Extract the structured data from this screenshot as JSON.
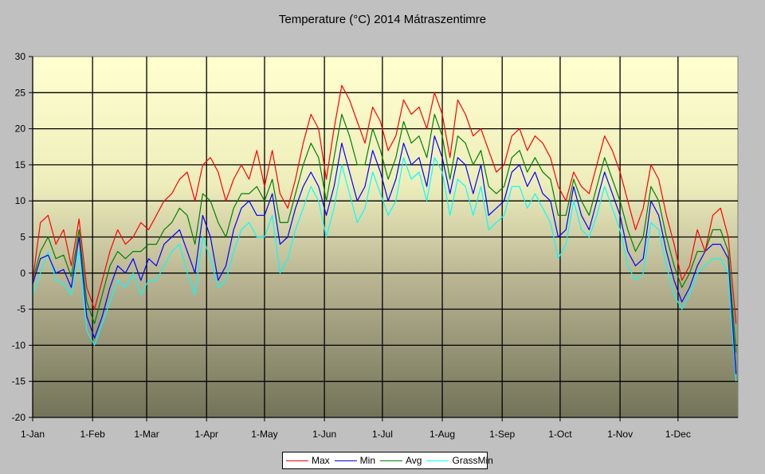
{
  "chart_data": {
    "type": "line",
    "title": "Temperature (°C) 2014 Mátraszentimre",
    "xlabel": "",
    "ylabel": "",
    "ylim": [
      -20,
      30
    ],
    "yticks": [
      30,
      25,
      20,
      15,
      10,
      5,
      0,
      -5,
      -10,
      -15,
      -20
    ],
    "xlim_days": [
      1,
      365
    ],
    "xtick_labels": [
      "1-Jan",
      "1-Feb",
      "1-Mar",
      "1-Apr",
      "1-May",
      "1-Jun",
      "1-Jul",
      "1-Aug",
      "1-Sep",
      "1-Oct",
      "1-Nov",
      "1-Dec"
    ],
    "xtick_days": [
      1,
      32,
      60,
      91,
      121,
      152,
      182,
      213,
      244,
      274,
      305,
      335
    ],
    "grid": true,
    "legend_position": "bottom",
    "x_day_of_year": [
      1,
      5,
      9,
      13,
      17,
      21,
      25,
      29,
      33,
      37,
      41,
      45,
      49,
      53,
      57,
      61,
      65,
      69,
      73,
      77,
      81,
      85,
      89,
      93,
      97,
      101,
      105,
      109,
      113,
      117,
      121,
      125,
      129,
      133,
      137,
      141,
      145,
      149,
      153,
      157,
      161,
      165,
      169,
      173,
      177,
      181,
      185,
      189,
      193,
      197,
      201,
      205,
      209,
      213,
      217,
      221,
      225,
      229,
      233,
      237,
      241,
      245,
      249,
      253,
      257,
      261,
      265,
      269,
      273,
      277,
      281,
      285,
      289,
      293,
      297,
      301,
      305,
      309,
      313,
      317,
      321,
      325,
      329,
      333,
      337,
      341,
      345,
      349,
      353,
      357,
      361,
      365
    ],
    "series": [
      {
        "name": "Max",
        "color": "#ff0000",
        "values": [
          -1,
          7,
          8,
          4,
          6,
          1,
          7.5,
          -2,
          -5,
          -1,
          3,
          6,
          4,
          5,
          7,
          6,
          8,
          10,
          11,
          13,
          14,
          10,
          15,
          16,
          14,
          10,
          13,
          15,
          13,
          17,
          12,
          17,
          11,
          9,
          13,
          18,
          22,
          20,
          13,
          20,
          26,
          24,
          21,
          18,
          23,
          21,
          17,
          19,
          24,
          22,
          23,
          20,
          25,
          22,
          16,
          24,
          22,
          19,
          20,
          17,
          14,
          15,
          19,
          20,
          17,
          19,
          18,
          16,
          12,
          10,
          14,
          12,
          11,
          15,
          19,
          17,
          14,
          10,
          6,
          9,
          15,
          13,
          8,
          4,
          -1,
          1,
          6,
          3,
          8,
          9,
          5,
          -7
        ]
      },
      {
        "name": "Min",
        "color": "#0000ff",
        "values": [
          -1.5,
          2,
          2.5,
          0,
          0.5,
          -2,
          5,
          -6,
          -9,
          -6,
          -2,
          1,
          0,
          2,
          -1,
          2,
          1,
          4,
          5,
          6,
          3,
          0,
          8,
          5,
          -1,
          1,
          6,
          9,
          10,
          8,
          8,
          11,
          4,
          5,
          9,
          12,
          14,
          12,
          8,
          12,
          18,
          14,
          10,
          12,
          17,
          14,
          10,
          13,
          18,
          15,
          16,
          12,
          19,
          16,
          11,
          16,
          15,
          11,
          15,
          8,
          9,
          10,
          14,
          15,
          12,
          14,
          11,
          10,
          5,
          6,
          12,
          8,
          6,
          10,
          14,
          11,
          8,
          3,
          1,
          2,
          10,
          8,
          3,
          -1,
          -4,
          -2,
          1,
          3,
          4,
          4,
          2,
          -14
        ]
      },
      {
        "name": "Avg",
        "color": "#008000",
        "values": [
          -1,
          3,
          5,
          2,
          2.5,
          -0.5,
          6,
          -4,
          -7,
          -3,
          1,
          3,
          2,
          3,
          3,
          4,
          4,
          6,
          7,
          9,
          8,
          4,
          11,
          10,
          7,
          5,
          9,
          11,
          11,
          12,
          10,
          13,
          7,
          7,
          11,
          15,
          18,
          16,
          10,
          16,
          22,
          19,
          15,
          15,
          20,
          17,
          13,
          16,
          21,
          18,
          19,
          16,
          22,
          19,
          13,
          19,
          18,
          15,
          17,
          12,
          11,
          12,
          16,
          17,
          14,
          16,
          14,
          13,
          8,
          8,
          13,
          10,
          8,
          12,
          16,
          13,
          10,
          6,
          3,
          5,
          12,
          10,
          5,
          1,
          -2,
          0,
          3,
          3,
          6,
          6,
          3,
          -11
        ]
      },
      {
        "name": "GrassMin",
        "color": "#00ffff",
        "values": [
          -3,
          0,
          3,
          -1,
          -1.5,
          -3,
          3,
          -8,
          -10,
          -7,
          -4,
          -1,
          -2,
          0,
          -3,
          -1,
          -1,
          1,
          3,
          4,
          0,
          -3,
          5,
          2,
          -2,
          -1,
          3,
          6,
          7,
          5,
          5,
          8,
          0,
          2,
          6,
          9,
          12,
          10,
          5,
          9,
          15,
          11,
          7,
          9,
          14,
          11,
          8,
          10,
          16,
          13,
          14,
          10,
          16,
          14,
          8,
          13,
          12,
          8,
          12,
          6,
          7,
          8,
          12,
          12,
          9,
          11,
          9,
          7,
          2,
          4,
          10,
          6,
          5,
          8,
          12,
          9,
          6,
          1,
          -1,
          0,
          7,
          6,
          1,
          -3,
          -5,
          -3,
          0,
          1,
          2,
          2,
          0,
          -15
        ]
      }
    ]
  }
}
